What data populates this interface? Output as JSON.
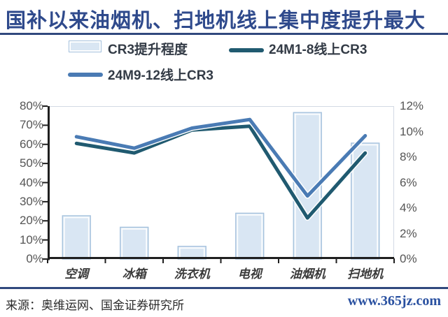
{
  "title": {
    "text": "国补以来油烟机、扫地机线上集中度提升最大"
  },
  "colors": {
    "title": "#2F4A8C",
    "rule": "#31497E",
    "bar_fill": "#D9E6F3",
    "bar_border": "#A3C0DC",
    "line_dark": "#205A70",
    "line_medium": "#4A7BB4",
    "axis": "#1F1F1F",
    "plot_border": "#D3DAE4",
    "tick_label": "#555555",
    "site_link": "#2950A0"
  },
  "legend": {
    "items": [
      {
        "label": "CR3提升程度",
        "type": "bar",
        "color": "#D9E6F3"
      },
      {
        "label": "24M1-8线上CR3",
        "type": "line",
        "color": "#205A70"
      },
      {
        "label": "24M9-12线上CR3",
        "type": "line",
        "color": "#4A7BB4"
      }
    ]
  },
  "chart_data": {
    "type": "combo-bar-line",
    "categories": [
      "空调",
      "冰箱",
      "洗衣机",
      "电视",
      "油烟机",
      "扫地机"
    ],
    "bar_series": {
      "name": "CR3提升程度",
      "axis": "right",
      "values": [
        3.4,
        2.5,
        1.0,
        3.6,
        11.5,
        9.1
      ]
    },
    "line_series": [
      {
        "name": "24M1-8线上CR3",
        "axis": "left",
        "color": "#205A70",
        "values": [
          60.5,
          55.5,
          67.5,
          69.5,
          21.5,
          55.5
        ]
      },
      {
        "name": "24M9-12线上CR3",
        "axis": "left",
        "color": "#4A7BB4",
        "values": [
          64,
          58,
          68.5,
          73,
          33,
          64.5
        ]
      }
    ],
    "left_axis": {
      "min": 0,
      "max": 80,
      "step": 10,
      "tick_labels": [
        "0%",
        "10%",
        "20%",
        "30%",
        "40%",
        "50%",
        "60%",
        "70%",
        "80%"
      ]
    },
    "right_axis": {
      "min": 0,
      "max": 12,
      "step": 2,
      "tick_labels": [
        "0%",
        "2%",
        "4%",
        "6%",
        "8%",
        "10%",
        "12%"
      ]
    },
    "grid": false,
    "legend_position": "top"
  },
  "footer": {
    "source": "来源：奥维运网、国金证券研究所",
    "site": "www.365jz.com"
  }
}
